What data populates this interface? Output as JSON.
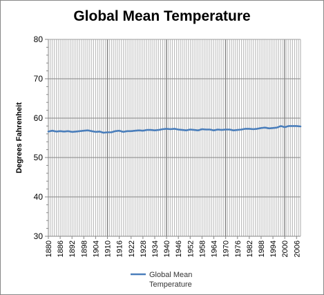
{
  "chart_data": {
    "type": "line",
    "title": "Global Mean Temperature",
    "xlabel": "",
    "ylabel": "Degrees Fahrenheit",
    "ylim": [
      30,
      80
    ],
    "yticks": [
      30,
      40,
      50,
      60,
      70,
      80
    ],
    "xlim": [
      1880,
      2008
    ],
    "xticks": [
      1880,
      1886,
      1892,
      1898,
      1904,
      1910,
      1916,
      1922,
      1928,
      1934,
      1940,
      1946,
      1952,
      1958,
      1964,
      1970,
      1976,
      1982,
      1988,
      1994,
      2000,
      2006
    ],
    "grid": true,
    "legend": "bottom",
    "series": [
      {
        "name": "Global Mean Temperature",
        "color": "#4a7ebb",
        "x": [
          1880,
          1882,
          1884,
          1886,
          1888,
          1890,
          1892,
          1894,
          1896,
          1898,
          1900,
          1902,
          1904,
          1906,
          1908,
          1910,
          1912,
          1914,
          1916,
          1918,
          1920,
          1922,
          1924,
          1926,
          1928,
          1930,
          1932,
          1934,
          1936,
          1938,
          1940,
          1942,
          1944,
          1946,
          1948,
          1950,
          1952,
          1954,
          1956,
          1958,
          1960,
          1962,
          1964,
          1966,
          1968,
          1970,
          1972,
          1974,
          1976,
          1978,
          1980,
          1982,
          1984,
          1986,
          1988,
          1990,
          1992,
          1994,
          1996,
          1998,
          2000,
          2002,
          2004,
          2006,
          2008
        ],
        "values": [
          56.6,
          56.8,
          56.6,
          56.7,
          56.6,
          56.7,
          56.5,
          56.6,
          56.7,
          56.8,
          56.9,
          56.7,
          56.5,
          56.6,
          56.3,
          56.4,
          56.4,
          56.7,
          56.8,
          56.5,
          56.7,
          56.7,
          56.8,
          56.9,
          56.8,
          57.0,
          57.0,
          56.9,
          57.0,
          57.2,
          57.3,
          57.2,
          57.3,
          57.1,
          57.0,
          56.9,
          57.1,
          57.0,
          56.9,
          57.2,
          57.1,
          57.1,
          56.9,
          57.1,
          57.0,
          57.1,
          57.1,
          56.9,
          57.0,
          57.1,
          57.3,
          57.3,
          57.2,
          57.3,
          57.5,
          57.6,
          57.4,
          57.5,
          57.6,
          58.0,
          57.7,
          58.0,
          58.0,
          58.0,
          57.9
        ]
      }
    ]
  }
}
